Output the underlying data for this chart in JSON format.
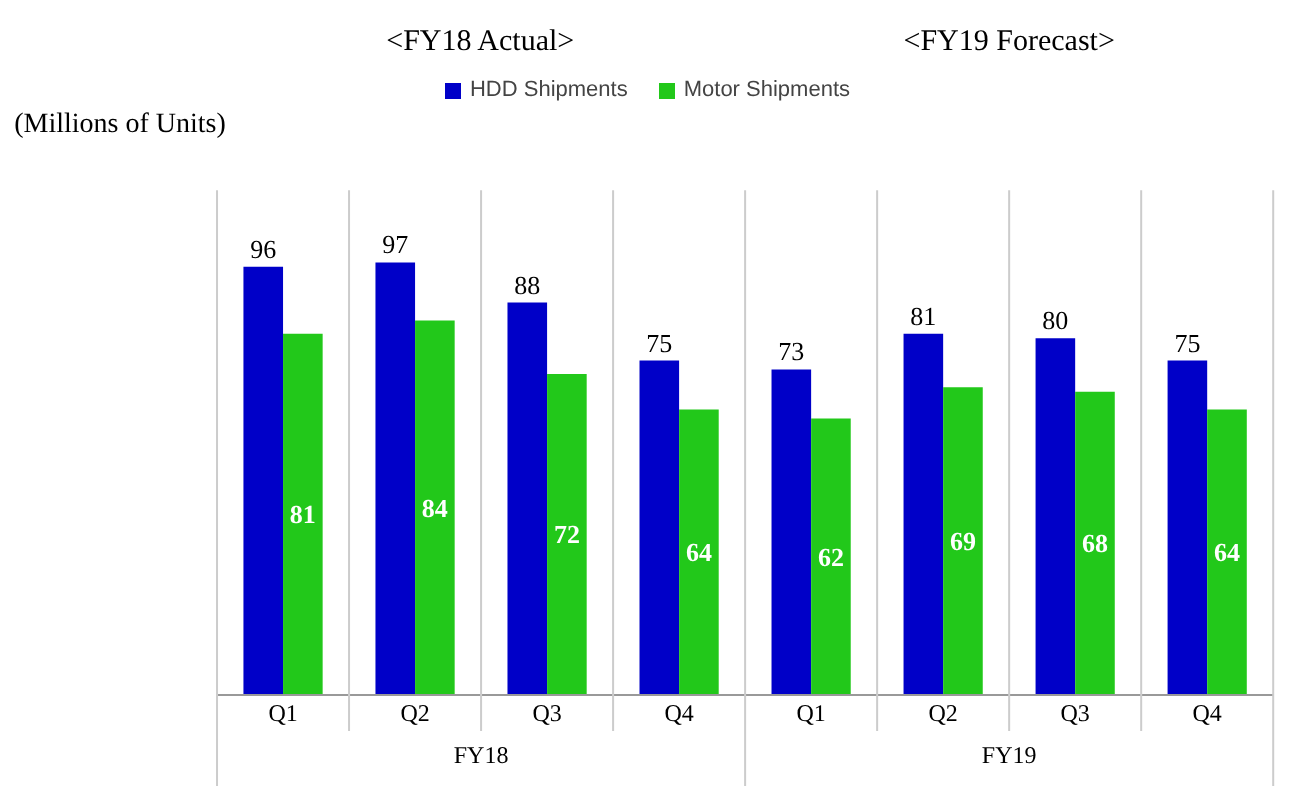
{
  "chart_data": {
    "type": "bar",
    "ylabel": "(Millions of Units)",
    "categories": [
      "Q1",
      "Q2",
      "Q3",
      "Q4",
      "Q1",
      "Q2",
      "Q3",
      "Q4"
    ],
    "series": [
      {
        "name": "HDD Shipments",
        "color": "#0000c8",
        "values": [
          96,
          97,
          88,
          75,
          73,
          81,
          80,
          75
        ]
      },
      {
        "name": "Motor Shipments",
        "color": "#22c81a",
        "values": [
          81,
          84,
          72,
          64,
          62,
          69,
          68,
          64
        ]
      }
    ],
    "annotations": [
      "<FY18 Actual>",
      "<FY19 Forecast>",
      "FY18",
      "FY19"
    ],
    "data_labels": true,
    "legend": "top",
    "grid": false
  }
}
